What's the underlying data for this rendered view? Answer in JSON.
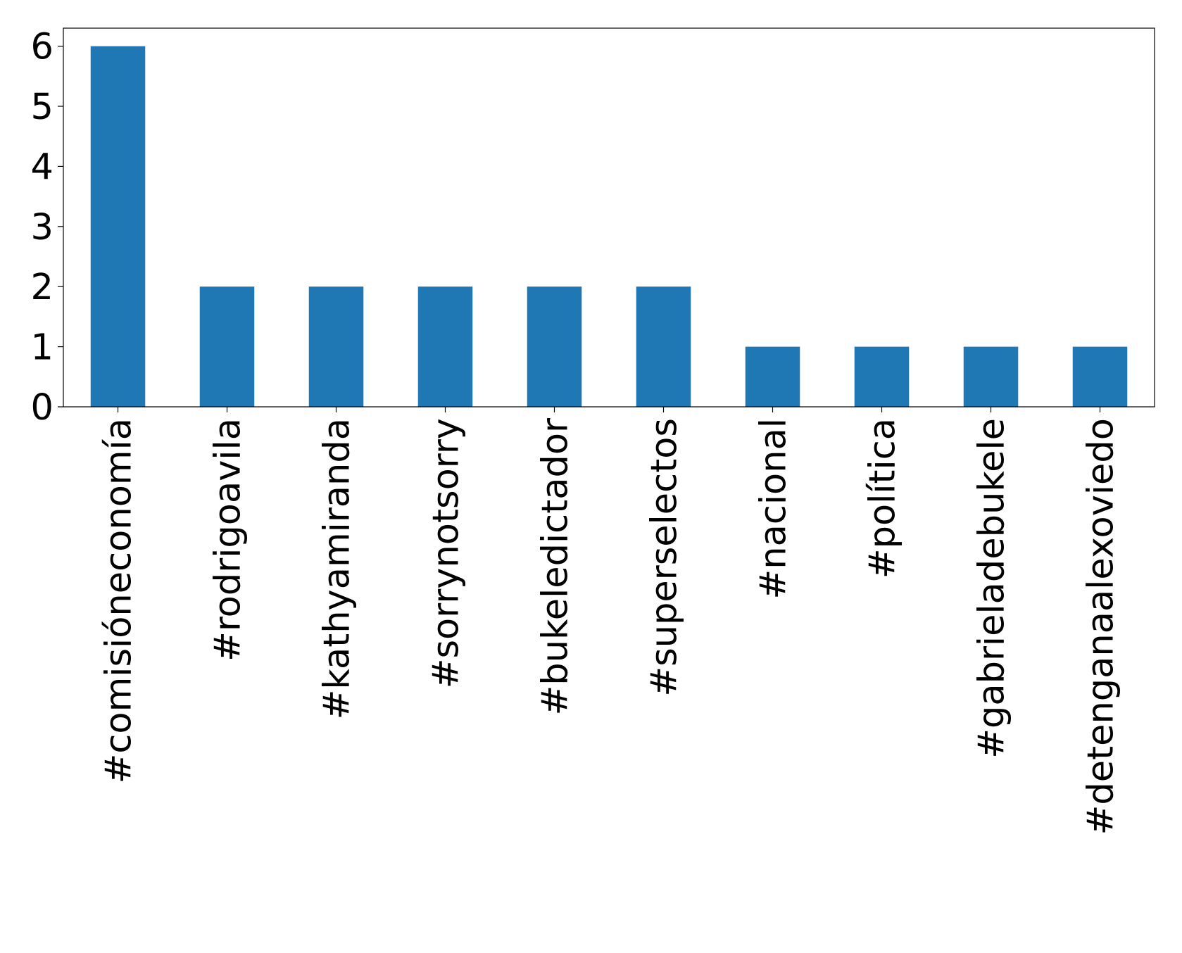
{
  "chart_data": {
    "type": "bar",
    "categories": [
      "#comisióneconomía",
      "#rodrigoavila",
      "#kathyamiranda",
      "#sorrynotsorry",
      "#bukeledictador",
      "#superselectos",
      "#nacional",
      "#política",
      "#gabrieladebukele",
      "#detenganaalexoviedo"
    ],
    "values": [
      6,
      2,
      2,
      2,
      2,
      2,
      1,
      1,
      1,
      1
    ],
    "color": "#1f77b4",
    "ylim": [
      0,
      6.3
    ],
    "yticks": [
      0,
      1,
      2,
      3,
      4,
      5,
      6
    ],
    "grid": false
  }
}
